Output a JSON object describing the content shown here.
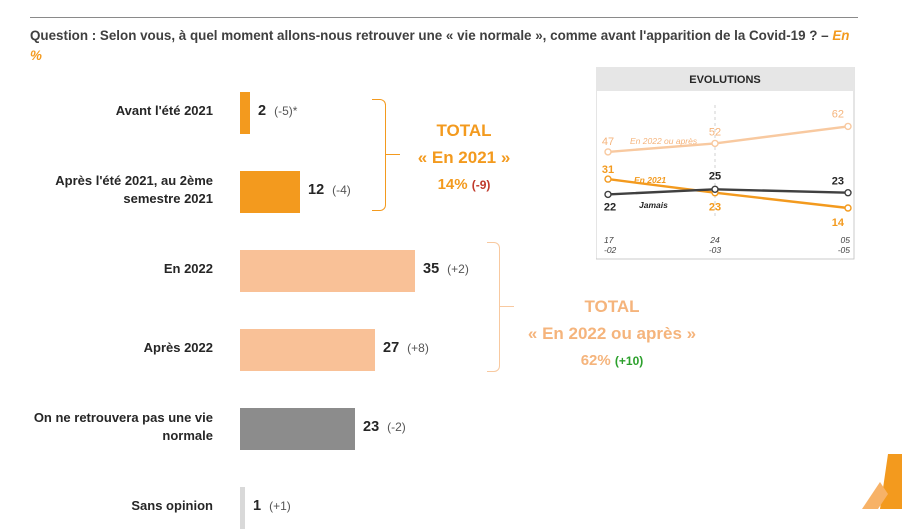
{
  "question": {
    "text": "Question : Selon vous, à quel moment allons-nous retrouver une « vie normale », comme avant l'apparition de la Covid-19 ? –",
    "unit": "En %"
  },
  "chart_data": [
    {
      "type": "bar",
      "orientation": "horizontal",
      "categories": [
        "Avant l'été 2021",
        "Après l'été 2021, au 2ème semestre 2021",
        "En 2022",
        "Après 2022",
        "On ne retrouvera pas une vie normale",
        "Sans opinion"
      ],
      "values": [
        2,
        12,
        35,
        27,
        23,
        1
      ],
      "changes": [
        "(-5)*",
        "(-4)",
        "(+2)",
        "(+8)",
        "(-2)",
        "(+1)"
      ],
      "colors": [
        "#f39a1e",
        "#f39a1e",
        "#f9c197",
        "#f9c197",
        "#8c8c8c",
        "#d9d9d9"
      ],
      "groups": [
        {
          "line1": "TOTAL",
          "line2": "« En 2021 »",
          "value": "14%",
          "change": "(-9)"
        },
        {
          "line1": "TOTAL",
          "line2": "« En 2022 ou après »",
          "value": "62%",
          "change": "(+10)"
        }
      ]
    },
    {
      "type": "line",
      "title": "EVOLUTIONS",
      "x": [
        "17 -02",
        "24 -03",
        "05 -05"
      ],
      "series": [
        {
          "name": "En 2022 ou après",
          "values": [
            47,
            52,
            62
          ],
          "color": "#f8c9a0"
        },
        {
          "name": "En 2021",
          "values": [
            31,
            23,
            14
          ],
          "color": "#f39a1e"
        },
        {
          "name": "Jamais",
          "values": [
            22,
            25,
            23
          ],
          "color": "#404040"
        }
      ]
    }
  ]
}
